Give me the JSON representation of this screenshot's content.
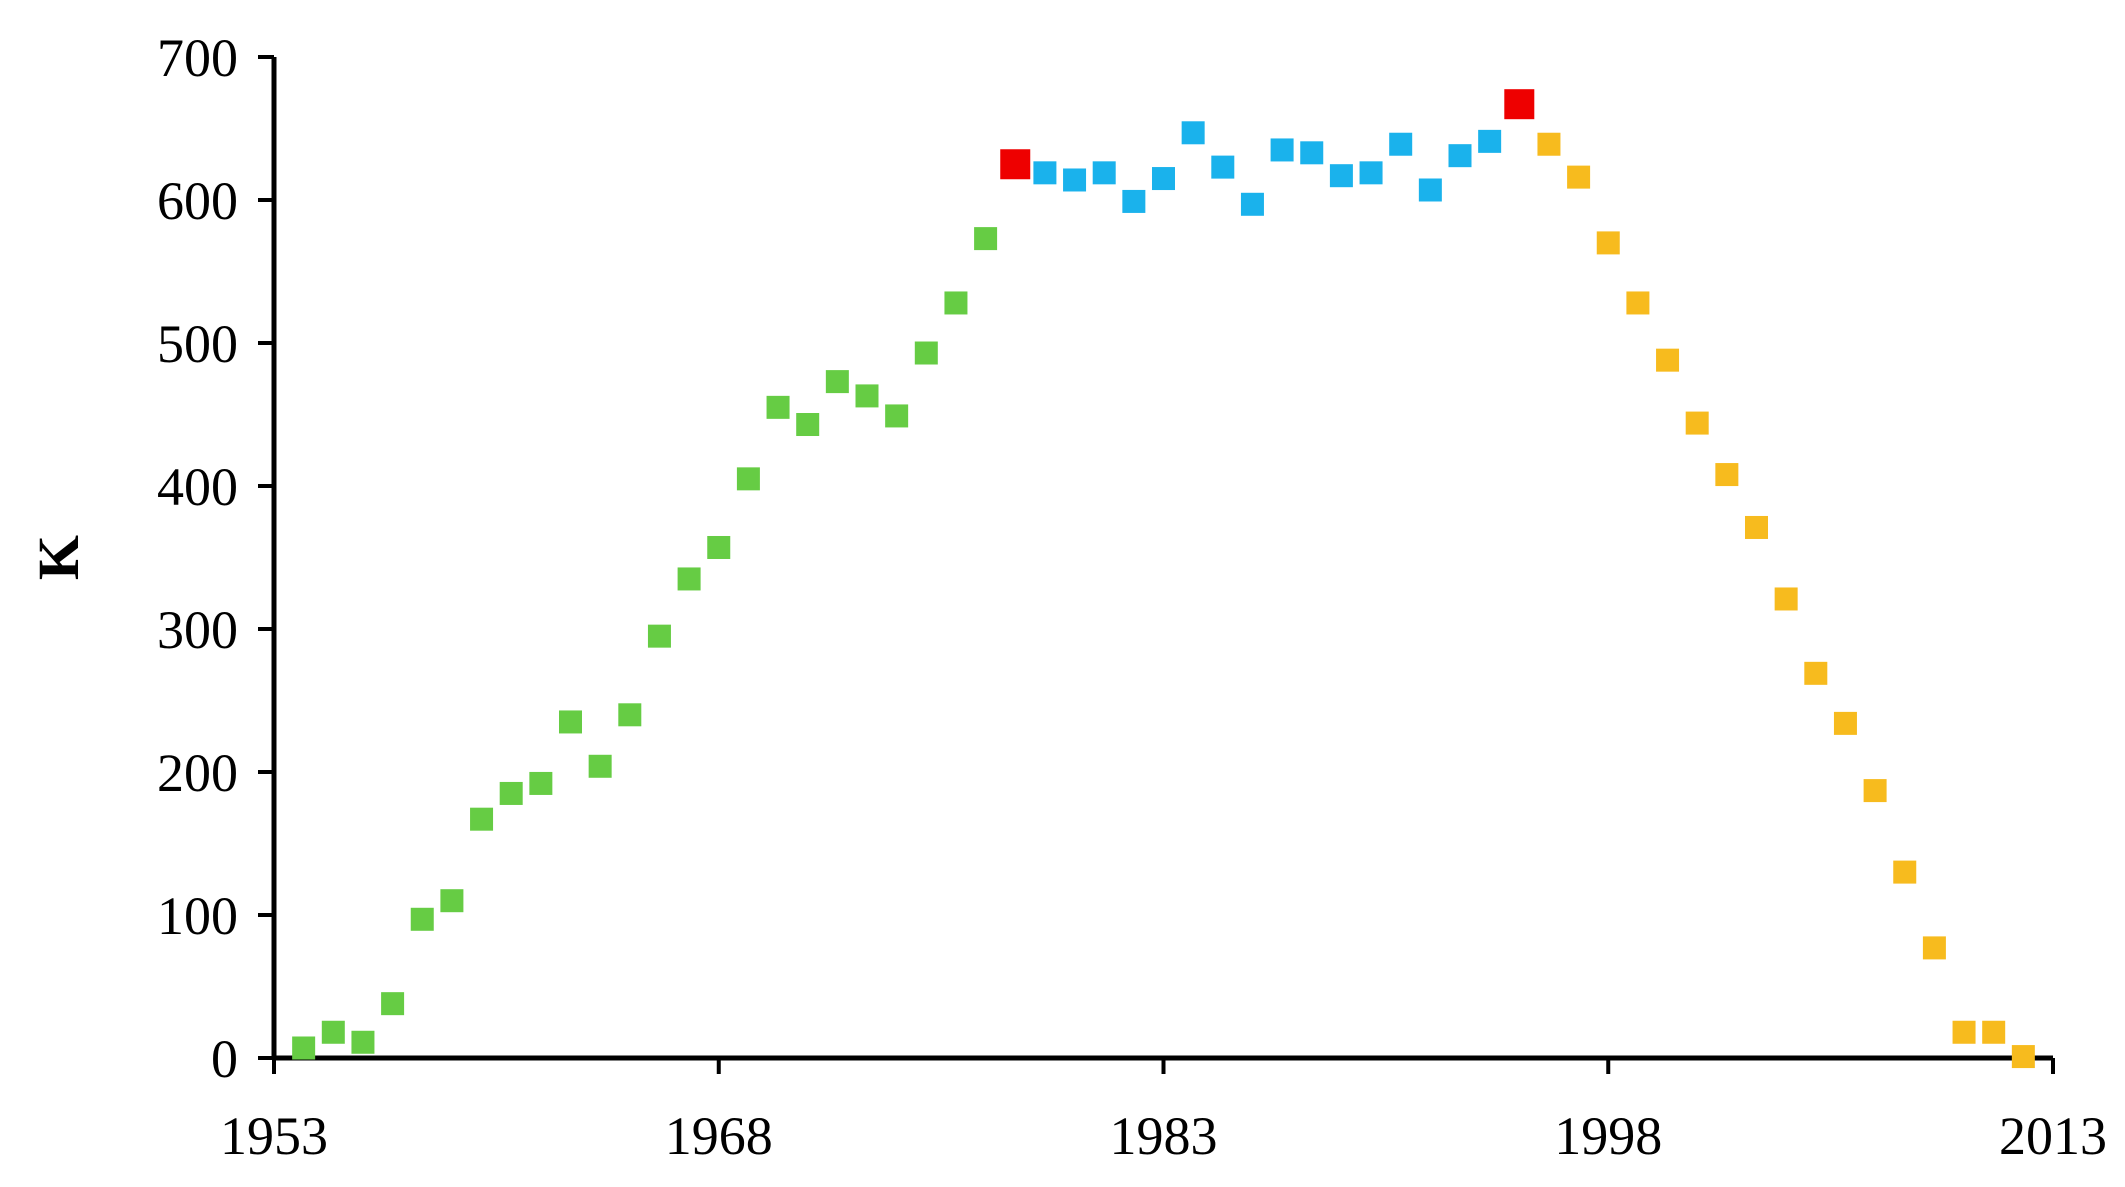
{
  "chart_data": {
    "type": "scatter",
    "title": "",
    "xlabel": "",
    "ylabel": "K",
    "xlim": [
      1953,
      2013
    ],
    "ylim": [
      0,
      700
    ],
    "xticks": [
      1953,
      1968,
      1983,
      1998,
      2013
    ],
    "yticks": [
      0,
      100,
      200,
      300,
      400,
      500,
      600,
      700
    ],
    "grid": false,
    "legend": "none",
    "marker": "square",
    "series": [
      {
        "color": "#66cc44",
        "points": [
          [
            1954,
            7
          ],
          [
            1955,
            18
          ],
          [
            1956,
            11
          ],
          [
            1957,
            38
          ],
          [
            1958,
            97
          ],
          [
            1959,
            110
          ],
          [
            1960,
            167
          ],
          [
            1961,
            185
          ],
          [
            1962,
            192
          ],
          [
            1963,
            235
          ],
          [
            1964,
            204
          ],
          [
            1965,
            240
          ],
          [
            1966,
            295
          ],
          [
            1967,
            335
          ],
          [
            1968,
            357
          ],
          [
            1969,
            405
          ],
          [
            1970,
            455
          ],
          [
            1971,
            443
          ],
          [
            1972,
            473
          ],
          [
            1973,
            463
          ],
          [
            1974,
            449
          ],
          [
            1975,
            493
          ],
          [
            1976,
            528
          ],
          [
            1977,
            573
          ]
        ]
      },
      {
        "color": "#ee0000",
        "points": [
          [
            1978,
            625
          ],
          [
            1995,
            667
          ]
        ]
      },
      {
        "color": "#1ab2ec",
        "points": [
          [
            1979,
            619
          ],
          [
            1980,
            614
          ],
          [
            1981,
            619
          ],
          [
            1982,
            599
          ],
          [
            1983,
            615
          ],
          [
            1984,
            647
          ],
          [
            1985,
            623
          ],
          [
            1986,
            597
          ],
          [
            1987,
            635
          ],
          [
            1988,
            633
          ],
          [
            1989,
            617
          ],
          [
            1990,
            619
          ],
          [
            1991,
            639
          ],
          [
            1992,
            607
          ],
          [
            1993,
            631
          ],
          [
            1994,
            641
          ]
        ]
      },
      {
        "color": "#f7bb1e",
        "points": [
          [
            1996,
            639
          ],
          [
            1997,
            616
          ],
          [
            1998,
            570
          ],
          [
            1999,
            528
          ],
          [
            2000,
            488
          ],
          [
            2001,
            444
          ],
          [
            2002,
            408
          ],
          [
            2003,
            371
          ],
          [
            2004,
            321
          ],
          [
            2005,
            269
          ],
          [
            2006,
            234
          ],
          [
            2007,
            187
          ],
          [
            2008,
            130
          ],
          [
            2009,
            77
          ],
          [
            2010,
            18
          ],
          [
            2011,
            18
          ],
          [
            2012,
            1
          ]
        ]
      }
    ]
  }
}
